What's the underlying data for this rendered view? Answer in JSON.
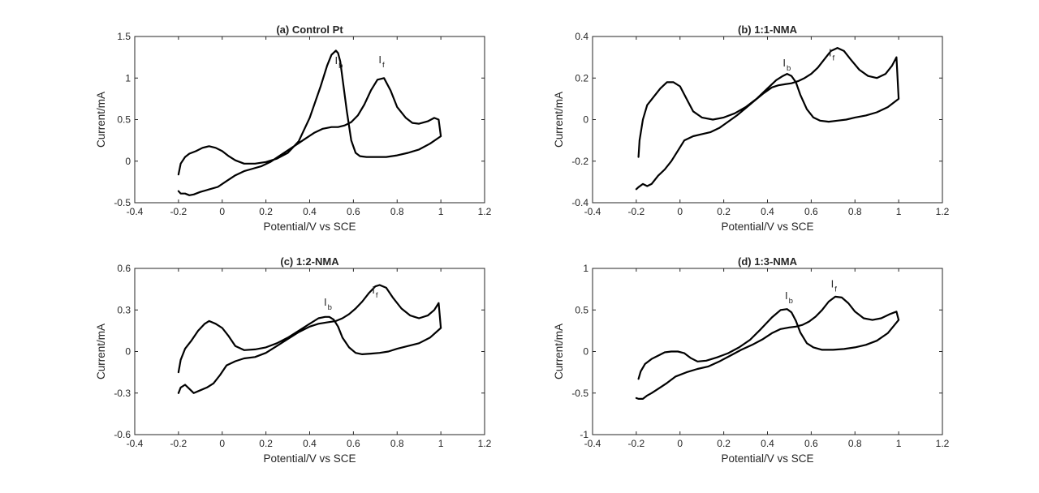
{
  "figure": {
    "background": "#ffffff",
    "axis_color": "#262626",
    "curve_color": "#000000"
  },
  "chart_data": [
    {
      "type": "line",
      "title": "(a) Control Pt",
      "xlabel": "Potential/V vs SCE",
      "ylabel": "Current/mA",
      "xlim": [
        -0.4,
        1.2
      ],
      "ylim": [
        -0.5,
        1.5
      ],
      "xticks": [
        -0.4,
        -0.2,
        0,
        0.2,
        0.4,
        0.6,
        0.8,
        1,
        1.2
      ],
      "xtick_labels": [
        "-0.4",
        "-0.2",
        "0",
        "0.2",
        "0.4",
        "0.6",
        "0.8",
        "1",
        "1.2"
      ],
      "yticks": [
        -0.5,
        0,
        0.5,
        1,
        1.5
      ],
      "ytick_labels": [
        "-0.5",
        "0",
        "0.5",
        "1",
        "1.5"
      ],
      "grid": false,
      "series": [
        {
          "style": "solid",
          "x": [
            -0.2,
            -0.19,
            -0.17,
            -0.15,
            -0.12,
            -0.09,
            -0.06,
            -0.03,
            0.0,
            0.03,
            0.06,
            0.1,
            0.15,
            0.2,
            0.25,
            0.3,
            0.35,
            0.4,
            0.45,
            0.48,
            0.5,
            0.52,
            0.53,
            0.54,
            0.55,
            0.57,
            0.59,
            0.61,
            0.63,
            0.66,
            0.7,
            0.75,
            0.8,
            0.85,
            0.9,
            0.95,
            1.0,
            0.99,
            0.97,
            0.94,
            0.9,
            0.87,
            0.84,
            0.8,
            0.77,
            0.74,
            0.71,
            0.68,
            0.65,
            0.62,
            0.59,
            0.56,
            0.53,
            0.5,
            0.46,
            0.42,
            0.38,
            0.34,
            0.3,
            0.26,
            0.22,
            0.18,
            0.14,
            0.1,
            0.06,
            0.02,
            -0.02,
            -0.06,
            -0.1,
            -0.13,
            -0.15,
            -0.17,
            -0.19,
            -0.2
          ],
          "y": [
            -0.16,
            -0.03,
            0.05,
            0.09,
            0.12,
            0.16,
            0.18,
            0.16,
            0.12,
            0.06,
            0.01,
            -0.03,
            -0.03,
            -0.01,
            0.03,
            0.1,
            0.24,
            0.52,
            0.9,
            1.15,
            1.28,
            1.33,
            1.3,
            1.2,
            1.0,
            0.6,
            0.25,
            0.1,
            0.06,
            0.05,
            0.05,
            0.05,
            0.07,
            0.1,
            0.14,
            0.21,
            0.3,
            0.5,
            0.52,
            0.48,
            0.45,
            0.46,
            0.52,
            0.65,
            0.85,
            1.0,
            0.98,
            0.85,
            0.68,
            0.55,
            0.47,
            0.43,
            0.41,
            0.41,
            0.39,
            0.34,
            0.27,
            0.2,
            0.13,
            0.06,
            -0.01,
            -0.06,
            -0.09,
            -0.12,
            -0.17,
            -0.24,
            -0.31,
            -0.34,
            -0.37,
            -0.4,
            -0.41,
            -0.39,
            -0.39,
            -0.36
          ]
        }
      ],
      "annotations": [
        {
          "text": "I",
          "subscript": "b",
          "x": 0.515,
          "y": 1.17
        },
        {
          "text": "I",
          "subscript": "f",
          "x": 0.715,
          "y": 1.18
        }
      ]
    },
    {
      "type": "line",
      "title": "(b) 1:1-NMA",
      "xlabel": "Potential/V vs SCE",
      "ylabel": "Current/mA",
      "xlim": [
        -0.4,
        1.2
      ],
      "ylim": [
        -0.4,
        0.4
      ],
      "xticks": [
        -0.4,
        -0.2,
        0,
        0.2,
        0.4,
        0.6,
        0.8,
        1,
        1.2
      ],
      "xtick_labels": [
        "-0.4",
        "-0.2",
        "0",
        "0.2",
        "0.4",
        "0.6",
        "0.8",
        "1",
        "1.2"
      ],
      "yticks": [
        -0.4,
        -0.2,
        0,
        0.2,
        0.4
      ],
      "ytick_labels": [
        "-0.4",
        "-0.2",
        "0",
        "0.2",
        "0.4"
      ],
      "grid": false,
      "series": [
        {
          "style": "solid",
          "x": [
            -0.19,
            -0.185,
            -0.17,
            -0.15,
            -0.12,
            -0.09,
            -0.06,
            -0.03,
            0.0,
            0.03,
            0.06,
            0.1,
            0.15,
            0.2,
            0.25,
            0.3,
            0.35,
            0.4,
            0.44,
            0.47,
            0.49,
            0.51,
            0.53,
            0.55,
            0.58,
            0.61,
            0.64,
            0.68,
            0.72,
            0.76,
            0.8,
            0.85,
            0.9,
            0.95,
            1.0,
            0.99,
            0.97,
            0.94,
            0.9,
            0.86,
            0.82,
            0.78,
            0.75,
            0.72,
            0.69,
            0.66,
            0.63,
            0.6,
            0.57,
            0.54,
            0.51,
            0.48,
            0.45,
            0.42,
            0.38,
            0.34,
            0.3,
            0.26,
            0.22,
            0.18,
            0.14,
            0.1,
            0.06,
            0.02,
            -0.01,
            -0.04,
            -0.07,
            -0.1,
            -0.13,
            -0.15,
            -0.17,
            -0.19,
            -0.2
          ],
          "y": [
            -0.18,
            -0.1,
            0.0,
            0.07,
            0.11,
            0.15,
            0.18,
            0.18,
            0.16,
            0.1,
            0.04,
            0.01,
            0.0,
            0.01,
            0.03,
            0.06,
            0.1,
            0.15,
            0.19,
            0.21,
            0.22,
            0.21,
            0.18,
            0.12,
            0.05,
            0.01,
            -0.005,
            -0.01,
            -0.005,
            0.0,
            0.01,
            0.02,
            0.035,
            0.06,
            0.1,
            0.3,
            0.26,
            0.22,
            0.2,
            0.21,
            0.24,
            0.29,
            0.33,
            0.345,
            0.33,
            0.29,
            0.25,
            0.22,
            0.2,
            0.185,
            0.175,
            0.17,
            0.165,
            0.155,
            0.125,
            0.09,
            0.055,
            0.02,
            -0.01,
            -0.04,
            -0.06,
            -0.07,
            -0.08,
            -0.1,
            -0.15,
            -0.2,
            -0.24,
            -0.27,
            -0.31,
            -0.32,
            -0.31,
            -0.325,
            -0.335
          ]
        }
      ],
      "annotations": [
        {
          "text": "I",
          "subscript": "b",
          "x": 0.47,
          "y": 0.255
        },
        {
          "text": "I",
          "subscript": "f",
          "x": 0.68,
          "y": 0.305
        }
      ]
    },
    {
      "type": "line",
      "title": "(c) 1:2-NMA",
      "xlabel": "Potential/V vs SCE",
      "ylabel": "Current/mA",
      "xlim": [
        -0.4,
        1.2
      ],
      "ylim": [
        -0.6,
        0.6
      ],
      "xticks": [
        -0.4,
        -0.2,
        0,
        0.2,
        0.4,
        0.6,
        0.8,
        1,
        1.2
      ],
      "xtick_labels": [
        "-0.4",
        "-0.2",
        "0",
        "0.2",
        "0.4",
        "0.6",
        "0.8",
        "1",
        "1.2"
      ],
      "yticks": [
        -0.6,
        -0.3,
        0,
        0.3,
        0.6
      ],
      "ytick_labels": [
        "-0.6",
        "-0.3",
        "0",
        "0.3",
        "0.6"
      ],
      "grid": false,
      "series": [
        {
          "style": "solid",
          "x": [
            -0.2,
            -0.19,
            -0.17,
            -0.14,
            -0.11,
            -0.08,
            -0.06,
            -0.03,
            0.0,
            0.03,
            0.06,
            0.1,
            0.15,
            0.2,
            0.25,
            0.3,
            0.35,
            0.4,
            0.44,
            0.47,
            0.49,
            0.51,
            0.53,
            0.55,
            0.58,
            0.61,
            0.64,
            0.68,
            0.72,
            0.76,
            0.8,
            0.85,
            0.9,
            0.95,
            1.0,
            0.99,
            0.97,
            0.94,
            0.9,
            0.86,
            0.82,
            0.78,
            0.75,
            0.72,
            0.7,
            0.67,
            0.64,
            0.61,
            0.58,
            0.55,
            0.52,
            0.48,
            0.44,
            0.4,
            0.35,
            0.3,
            0.25,
            0.2,
            0.15,
            0.1,
            0.06,
            0.02,
            -0.01,
            -0.04,
            -0.07,
            -0.1,
            -0.13,
            -0.15,
            -0.17,
            -0.19,
            -0.2
          ],
          "y": [
            -0.15,
            -0.06,
            0.02,
            0.08,
            0.15,
            0.2,
            0.22,
            0.2,
            0.17,
            0.11,
            0.04,
            0.01,
            0.015,
            0.03,
            0.06,
            0.1,
            0.15,
            0.2,
            0.24,
            0.25,
            0.25,
            0.23,
            0.18,
            0.1,
            0.03,
            -0.01,
            -0.02,
            -0.015,
            -0.01,
            0.0,
            0.02,
            0.04,
            0.06,
            0.1,
            0.17,
            0.35,
            0.3,
            0.26,
            0.24,
            0.26,
            0.31,
            0.39,
            0.46,
            0.48,
            0.47,
            0.42,
            0.36,
            0.31,
            0.27,
            0.24,
            0.22,
            0.21,
            0.2,
            0.18,
            0.14,
            0.09,
            0.04,
            -0.01,
            -0.04,
            -0.05,
            -0.07,
            -0.1,
            -0.17,
            -0.23,
            -0.26,
            -0.28,
            -0.3,
            -0.27,
            -0.24,
            -0.26,
            -0.3
          ]
        }
      ],
      "annotations": [
        {
          "text": "I",
          "subscript": "b",
          "x": 0.465,
          "y": 0.33
        },
        {
          "text": "I",
          "subscript": "f",
          "x": 0.685,
          "y": 0.42
        }
      ]
    },
    {
      "type": "line",
      "title": "(d) 1:3-NMA",
      "xlabel": "Potential/V vs SCE",
      "ylabel": "Current/mA",
      "xlim": [
        -0.4,
        1.2
      ],
      "ylim": [
        -1,
        1
      ],
      "xticks": [
        -0.4,
        -0.2,
        0,
        0.2,
        0.4,
        0.6,
        0.8,
        1,
        1.2
      ],
      "xtick_labels": [
        "-0.4",
        "-0.2",
        "0",
        "0.2",
        "0.4",
        "0.6",
        "0.8",
        "1",
        "1.2"
      ],
      "yticks": [
        -1,
        -0.5,
        0,
        0.5,
        1
      ],
      "ytick_labels": [
        "-1",
        "-0.5",
        "0",
        "0.5",
        "1"
      ],
      "grid": false,
      "series": [
        {
          "style": "solid",
          "x": [
            -0.19,
            -0.18,
            -0.16,
            -0.13,
            -0.1,
            -0.07,
            -0.04,
            -0.01,
            0.02,
            0.05,
            0.08,
            0.12,
            0.17,
            0.22,
            0.27,
            0.32,
            0.37,
            0.42,
            0.46,
            0.49,
            0.51,
            0.53,
            0.55,
            0.58,
            0.61,
            0.65,
            0.7,
            0.75,
            0.8,
            0.85,
            0.9,
            0.95,
            1.0,
            0.99,
            0.96,
            0.92,
            0.88,
            0.84,
            0.8,
            0.77,
            0.74,
            0.71,
            0.68,
            0.65,
            0.62,
            0.59,
            0.56,
            0.53,
            0.5,
            0.46,
            0.42,
            0.38,
            0.33,
            0.28,
            0.23,
            0.18,
            0.13,
            0.08,
            0.03,
            -0.02,
            -0.06,
            -0.1,
            -0.13,
            -0.15,
            -0.17,
            -0.19,
            -0.2
          ],
          "y": [
            -0.33,
            -0.24,
            -0.15,
            -0.09,
            -0.05,
            -0.01,
            0.0,
            0.0,
            -0.02,
            -0.08,
            -0.12,
            -0.11,
            -0.07,
            -0.02,
            0.05,
            0.14,
            0.27,
            0.41,
            0.5,
            0.51,
            0.47,
            0.37,
            0.23,
            0.1,
            0.05,
            0.02,
            0.02,
            0.03,
            0.05,
            0.08,
            0.13,
            0.22,
            0.38,
            0.48,
            0.45,
            0.4,
            0.38,
            0.4,
            0.48,
            0.58,
            0.65,
            0.66,
            0.6,
            0.5,
            0.42,
            0.36,
            0.32,
            0.3,
            0.29,
            0.27,
            0.22,
            0.15,
            0.08,
            0.02,
            -0.05,
            -0.12,
            -0.18,
            -0.21,
            -0.25,
            -0.3,
            -0.38,
            -0.45,
            -0.5,
            -0.53,
            -0.57,
            -0.57,
            -0.56
          ]
        }
      ],
      "annotations": [
        {
          "text": "I",
          "subscript": "b",
          "x": 0.48,
          "y": 0.63
        },
        {
          "text": "I",
          "subscript": "f",
          "x": 0.69,
          "y": 0.77
        }
      ]
    }
  ]
}
